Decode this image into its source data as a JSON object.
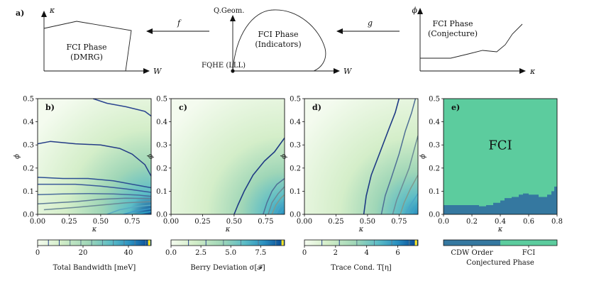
{
  "top_row": {
    "panel_a_letter": "a)",
    "schematic1": {
      "y_axis": "κ",
      "x_axis": "W",
      "region_line1": "FCI Phase",
      "region_line2": "(DMRG)"
    },
    "schematic2": {
      "y_axis": "Q.Geom.",
      "x_axis": "W",
      "region_line1": "FCI Phase",
      "region_line2": "(Indicators)",
      "origin_label": "FQHE (LLL)"
    },
    "schematic3": {
      "y_axis": "ϕ",
      "x_axis": "κ",
      "region_line1": "FCI Phase",
      "region_line2": "(Conjecture)"
    },
    "arrow_f": "f",
    "arrow_g": "g"
  },
  "chart_data": [
    {
      "type": "heatmap",
      "panel_label": "b)",
      "xlabel": "κ",
      "ylabel": "ϕ",
      "xlim": [
        0,
        0.9
      ],
      "ylim": [
        0,
        0.5
      ],
      "x_ticks": [
        "0.00",
        "0.25",
        "0.50",
        "0.75"
      ],
      "y_ticks": [
        "0.0",
        "0.1",
        "0.2",
        "0.3",
        "0.4",
        "0.5"
      ],
      "colorbar_label": "Total Bandwidth [meV]",
      "colorbar_ticks": [
        "0",
        "20",
        "40"
      ],
      "colorbar_range": [
        0,
        50
      ],
      "colormap": [
        "#f4fbef",
        "#d4eec9",
        "#9fd6b7",
        "#5bbcc6",
        "#2a8fc0",
        "#0c4f98",
        "#fde725"
      ],
      "contours": [
        {
          "color": "#2b4590",
          "points": [
            [
              0.44,
              0.5
            ],
            [
              0.55,
              0.48
            ],
            [
              0.7,
              0.465
            ],
            [
              0.85,
              0.445
            ],
            [
              0.9,
              0.425
            ]
          ]
        },
        {
          "color": "#243c86",
          "points": [
            [
              0,
              0.305
            ],
            [
              0.1,
              0.315
            ],
            [
              0.3,
              0.305
            ],
            [
              0.5,
              0.3
            ],
            [
              0.65,
              0.285
            ],
            [
              0.75,
              0.26
            ],
            [
              0.85,
              0.215
            ],
            [
              0.9,
              0.165
            ]
          ]
        },
        {
          "color": "#2c4f93",
          "points": [
            [
              0,
              0.16
            ],
            [
              0.2,
              0.155
            ],
            [
              0.4,
              0.155
            ],
            [
              0.6,
              0.145
            ],
            [
              0.75,
              0.13
            ],
            [
              0.9,
              0.115
            ]
          ]
        },
        {
          "color": "#3a5a99",
          "points": [
            [
              0,
              0.13
            ],
            [
              0.3,
              0.13
            ],
            [
              0.5,
              0.122
            ],
            [
              0.7,
              0.11
            ],
            [
              0.9,
              0.095
            ]
          ]
        },
        {
          "color": "#4b6d9c",
          "points": [
            [
              0,
              0.085
            ],
            [
              0.2,
              0.088
            ],
            [
              0.4,
              0.09
            ],
            [
              0.6,
              0.088
            ],
            [
              0.8,
              0.083
            ],
            [
              0.9,
              0.078
            ]
          ]
        },
        {
          "color": "#5f7c97",
          "points": [
            [
              0,
              0.045
            ],
            [
              0.3,
              0.055
            ],
            [
              0.5,
              0.065
            ],
            [
              0.7,
              0.07
            ],
            [
              0.9,
              0.068
            ]
          ]
        },
        {
          "color": "#6b8a96",
          "points": [
            [
              0.05,
              0.02
            ],
            [
              0.3,
              0.03
            ],
            [
              0.5,
              0.04
            ],
            [
              0.7,
              0.05
            ],
            [
              0.9,
              0.055
            ]
          ]
        },
        {
          "color": "#5aaac1",
          "points": [
            [
              0.55,
              0.0
            ],
            [
              0.65,
              0.02
            ],
            [
              0.8,
              0.035
            ],
            [
              0.9,
              0.04
            ]
          ]
        },
        {
          "color": "#3c9bc8",
          "points": [
            [
              0.68,
              0.0
            ],
            [
              0.78,
              0.015
            ],
            [
              0.9,
              0.025
            ]
          ]
        },
        {
          "color": "#2fa9c9",
          "points": [
            [
              0.78,
              0.0
            ],
            [
              0.85,
              0.008
            ],
            [
              0.9,
              0.012
            ]
          ]
        }
      ]
    },
    {
      "type": "heatmap",
      "panel_label": "c)",
      "xlabel": "κ",
      "ylabel": "ϕ",
      "xlim": [
        0,
        0.9
      ],
      "ylim": [
        0,
        0.5
      ],
      "x_ticks": [
        "0.00",
        "0.25",
        "0.50",
        "0.75"
      ],
      "y_ticks": [
        "0.0",
        "0.1",
        "0.2",
        "0.3",
        "0.4",
        "0.5"
      ],
      "colorbar_label": "Berry Deviation σ[𝓕]",
      "colorbar_ticks": [
        "0.0",
        "2.5",
        "5.0",
        "7.5"
      ],
      "colorbar_range": [
        0,
        9.5
      ],
      "colormap": [
        "#f4fbef",
        "#d4eec9",
        "#9fd6b7",
        "#5bbcc6",
        "#2a8fc0",
        "#0c4f98",
        "#fde725"
      ],
      "contours": [
        {
          "color": "#1e3a84",
          "points": [
            [
              0.5,
              0.0
            ],
            [
              0.53,
              0.04
            ],
            [
              0.58,
              0.1
            ],
            [
              0.65,
              0.17
            ],
            [
              0.74,
              0.23
            ],
            [
              0.82,
              0.27
            ],
            [
              0.9,
              0.33
            ]
          ]
        },
        {
          "color": "#4f6f95",
          "points": [
            [
              0.73,
              0.0
            ],
            [
              0.76,
              0.05
            ],
            [
              0.8,
              0.1
            ],
            [
              0.84,
              0.13
            ],
            [
              0.9,
              0.155
            ]
          ]
        },
        {
          "color": "#6a8a95",
          "points": [
            [
              0.77,
              0.0
            ],
            [
              0.8,
              0.05
            ],
            [
              0.85,
              0.09
            ],
            [
              0.9,
              0.12
            ]
          ]
        },
        {
          "color": "#7f9a8e",
          "points": [
            [
              0.8,
              0.0
            ],
            [
              0.83,
              0.04
            ],
            [
              0.87,
              0.07
            ],
            [
              0.9,
              0.085
            ]
          ]
        },
        {
          "color": "#4aa6c7",
          "points": [
            [
              0.83,
              0.0
            ],
            [
              0.86,
              0.03
            ],
            [
              0.9,
              0.055
            ]
          ]
        },
        {
          "color": "#39a5c8",
          "points": [
            [
              0.86,
              0.0
            ],
            [
              0.9,
              0.03
            ]
          ]
        }
      ]
    },
    {
      "type": "heatmap",
      "panel_label": "d)",
      "xlabel": "κ",
      "ylabel": "ϕ",
      "xlim": [
        0,
        0.9
      ],
      "ylim": [
        0,
        0.5
      ],
      "x_ticks": [
        "0.00",
        "0.25",
        "0.50",
        "0.75"
      ],
      "y_ticks": [
        "0.0",
        "0.1",
        "0.2",
        "0.3",
        "0.4",
        "0.5"
      ],
      "colorbar_label": "Trace Cond. T[η]",
      "colorbar_ticks": [
        "0",
        "2",
        "4",
        "6"
      ],
      "colorbar_range": [
        0,
        7.3
      ],
      "colormap": [
        "#f4fbef",
        "#d4eec9",
        "#9fd6b7",
        "#5bbcc6",
        "#2a8fc0",
        "#0c4f98",
        "#fde725"
      ],
      "contours": [
        {
          "color": "#1e3a84",
          "points": [
            [
              0.47,
              0.0
            ],
            [
              0.49,
              0.08
            ],
            [
              0.53,
              0.17
            ],
            [
              0.6,
              0.27
            ],
            [
              0.67,
              0.37
            ],
            [
              0.72,
              0.44
            ],
            [
              0.75,
              0.5
            ]
          ]
        },
        {
          "color": "#4f6f95",
          "points": [
            [
              0.61,
              0.0
            ],
            [
              0.64,
              0.08
            ],
            [
              0.69,
              0.16
            ],
            [
              0.75,
              0.26
            ],
            [
              0.8,
              0.36
            ],
            [
              0.85,
              0.44
            ],
            [
              0.88,
              0.5
            ]
          ]
        },
        {
          "color": "#6c8b96",
          "points": [
            [
              0.7,
              0.0
            ],
            [
              0.73,
              0.06
            ],
            [
              0.78,
              0.13
            ],
            [
              0.83,
              0.2
            ],
            [
              0.88,
              0.3
            ],
            [
              0.9,
              0.34
            ]
          ]
        },
        {
          "color": "#7f9a8e",
          "points": [
            [
              0.76,
              0.0
            ],
            [
              0.79,
              0.05
            ],
            [
              0.84,
              0.11
            ],
            [
              0.9,
              0.17
            ]
          ]
        },
        {
          "color": "#4aa6c7",
          "points": [
            [
              0.8,
              0.0
            ],
            [
              0.84,
              0.04
            ],
            [
              0.9,
              0.09
            ]
          ]
        },
        {
          "color": "#39a5c8",
          "points": [
            [
              0.85,
              0.0
            ],
            [
              0.9,
              0.05
            ]
          ]
        }
      ]
    },
    {
      "type": "heatmap",
      "panel_label": "e)",
      "xlabel": "κ",
      "ylabel": "ϕ",
      "xlim": [
        0,
        0.8
      ],
      "ylim": [
        0,
        0.5
      ],
      "x_ticks": [
        "0.0",
        "0.2",
        "0.4",
        "0.6",
        "0.8"
      ],
      "y_ticks": [
        "0.0",
        "0.1",
        "0.2",
        "0.3",
        "0.4",
        "0.5"
      ],
      "region_label": "FCI",
      "colorbar_label": "Conjectured Phase",
      "colorbar_categories": [
        "CDW Order",
        "FCI"
      ],
      "colors": {
        "cdw": "#3578a0",
        "fci": "#5ccc9e"
      },
      "boundary": [
        [
          0,
          0.04
        ],
        [
          0.25,
          0.035
        ],
        [
          0.3,
          0.04
        ],
        [
          0.35,
          0.05
        ],
        [
          0.4,
          0.06
        ],
        [
          0.43,
          0.07
        ],
        [
          0.48,
          0.075
        ],
        [
          0.53,
          0.085
        ],
        [
          0.56,
          0.09
        ],
        [
          0.6,
          0.085
        ],
        [
          0.67,
          0.075
        ],
        [
          0.7,
          0.075
        ],
        [
          0.73,
          0.085
        ],
        [
          0.76,
          0.1
        ],
        [
          0.78,
          0.12
        ],
        [
          0.8,
          0.135
        ]
      ]
    }
  ]
}
